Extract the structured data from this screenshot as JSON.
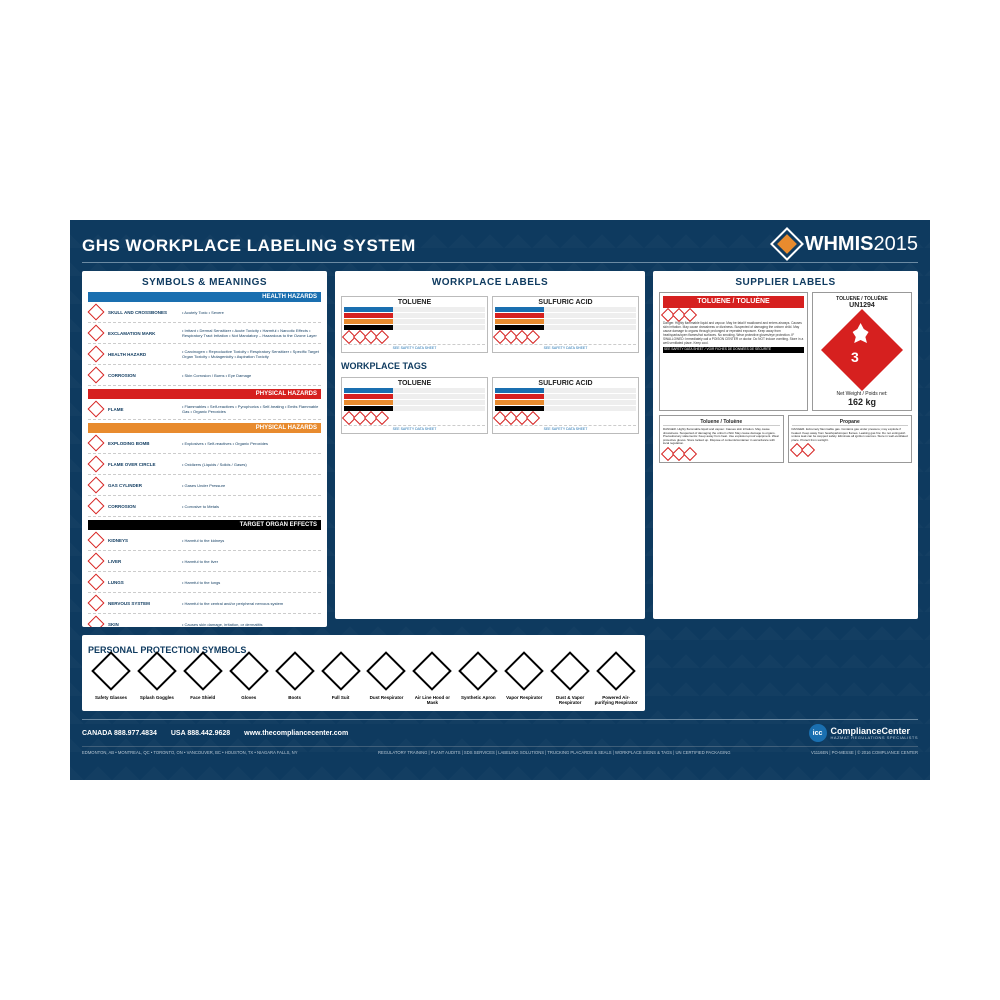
{
  "colors": {
    "bg": "#0e3a5f",
    "accent_red": "#d6201f",
    "accent_orange": "#e88b2e",
    "accent_blue": "#1a6fb0",
    "text_light": "#b7c7d4",
    "health_band": "#1a6fb0",
    "physical_band_red": "#d6201f",
    "physical_band_orange": "#e88b2e",
    "target_band": "#000000"
  },
  "header": {
    "title": "GHS WORKPLACE LABELING SYSTEM",
    "brand_name": "WHMIS",
    "brand_year": "2015"
  },
  "panels": {
    "workplace_labels": "WORKPLACE LABELS",
    "workplace_tags": "WORKPLACE TAGS",
    "supplier_labels": "SUPPLIER LABELS",
    "symbols": "SYMBOLS & MEANINGS",
    "ppe": "PERSONAL PROTECTION SYMBOLS"
  },
  "workplace_samples": {
    "label1": "TOLUENE",
    "label2": "SULFURIC ACID",
    "footer_link": "SEE SAFETY DATA SHEET",
    "bar_colors": [
      "#1a6fb0",
      "#d6201f",
      "#e88b2e",
      "#000000"
    ]
  },
  "supplier": {
    "main_title": "TOLUENE / TOLUÈNE",
    "un_number": "UN1294",
    "class_number": "3",
    "weight_label": "Net Weight / Poids net:",
    "weight_value": "162 kg",
    "sds_note": "SEE SAFETY DATA SHEET / VOIR FICHES DE DONNÉES DE SÉCURITÉ",
    "sub1": "Toluene / Toluène",
    "sub2": "Propane"
  },
  "symbols_bands": [
    {
      "title": "HEALTH HAZARDS",
      "color": "#1a6fb0",
      "rows": [
        {
          "name": "SKULL AND CROSSBONES",
          "desc": "Acutely Toxic • Severe"
        },
        {
          "name": "EXCLAMATION MARK",
          "desc": "Irritant • Dermal Sensitizer • Acute Toxicity • Harmful • Narcotic Effects • Respiratory Tract Irritation • Not Mandatory – Hazardous to the Ozone Layer"
        },
        {
          "name": "HEALTH HAZARD",
          "desc": "Carcinogen • Reproductive Toxicity • Respiratory Sensitizer • Specific Target Organ Toxicity • Mutagenicity • Aspiration Toxicity"
        },
        {
          "name": "CORROSION",
          "desc": "Skin Corrosion / Burns • Eye Damage"
        }
      ]
    },
    {
      "title": "PHYSICAL HAZARDS",
      "color": "#d6201f",
      "rows": [
        {
          "name": "FLAME",
          "desc": "Flammables • Self-reactives • Pyrophorics • Self-heating • Emits Flammable Gas • Organic Peroxides"
        }
      ]
    },
    {
      "title": "PHYSICAL HAZARDS",
      "color": "#e88b2e",
      "rows": [
        {
          "name": "EXPLODING BOMB",
          "desc": "Explosives • Self-reactives • Organic Peroxides"
        },
        {
          "name": "FLAME OVER CIRCLE",
          "desc": "Oxidizers (Liquids / Solids / Gases)"
        },
        {
          "name": "GAS CYLINDER",
          "desc": "Gases Under Pressure"
        },
        {
          "name": "CORROSION",
          "desc": "Corrosive to Metals"
        }
      ]
    },
    {
      "title": "TARGET ORGAN EFFECTS",
      "color": "#000000",
      "rows": [
        {
          "name": "KIDNEYS",
          "desc": "Harmful to the kidneys"
        },
        {
          "name": "LIVER",
          "desc": "Harmful to the liver"
        },
        {
          "name": "LUNGS",
          "desc": "Harmful to the lungs"
        },
        {
          "name": "NERVOUS SYSTEM",
          "desc": "Harmful to the central and/or peripheral nervous system"
        },
        {
          "name": "SKIN",
          "desc": "Causes skin damage, irritation, or dermatitis"
        },
        {
          "name": "EYES",
          "desc": "Irreversible eye damage • Serious eye irritation • Irritant"
        },
        {
          "name": "BLOOD",
          "desc": "Harmful to the blood"
        },
        {
          "name": "REPRODUCTIVE",
          "desc": "Harmful to the reproductive system"
        }
      ]
    }
  ],
  "ppe": [
    "Safety Glasses",
    "Splash Goggles",
    "Face Shield",
    "Gloves",
    "Boots",
    "Full Suit",
    "Dust Respirator",
    "Air Line Hood or Mask",
    "Synthetic Apron",
    "Vapor Respirator",
    "Dust & Vapor Respirator",
    "Powered Air-purifying Respirator"
  ],
  "contact": {
    "canada_label": "CANADA",
    "canada_phone": "888.977.4834",
    "usa_label": "USA",
    "usa_phone": "888.442.9628",
    "website": "www.thecompliancecenter.com",
    "company": "ComplianceCenter",
    "tagline": "HAZMAT REGULATIONS SPECIALISTS",
    "badge": "icc"
  },
  "footer": {
    "locations": "EDMONTON, AB • MONTREAL, QC • TORONTO, ON • VANCOUVER, BC • HOUSTON, TX • NIAGARA FALLS, NY",
    "services": "REGULATORY TRAINING | PLANT AUDITS | SDS SERVICES | LABELING SOLUTIONS | TRUCKING PLACARDS & SEALS | WORKPLACE SIGNS & TAGS | UN CERTIFIED PACKAGING",
    "copyright": "V1116EN | PO-MESSE | © 2016 COMPLIANCE CENTER"
  }
}
